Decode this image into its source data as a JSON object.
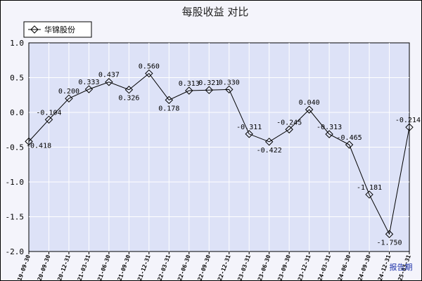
{
  "chart_data": {
    "type": "line",
    "title": "每股收益  对比",
    "x_axis_label": "报告期",
    "x": [
      "2019-09-30",
      "2020-09-30",
      "2020-12-31",
      "2021-03-31",
      "2021-06-30",
      "2021-09-30",
      "2021-12-31",
      "2022-03-31",
      "2022-06-30",
      "2022-09-30",
      "2022-12-31",
      "2023-03-31",
      "2023-06-30",
      "2023-09-30",
      "2023-12-31",
      "2024-03-31",
      "2024-06-30",
      "2024-09-30",
      "2024-12-31",
      "2025-03-31"
    ],
    "series": [
      {
        "name": "华锦股份",
        "values": [
          -0.418,
          -0.104,
          0.2,
          0.333,
          0.437,
          0.326,
          0.56,
          0.178,
          0.313,
          0.321,
          0.33,
          -0.311,
          -0.422,
          -0.245,
          0.04,
          -0.313,
          -0.465,
          -1.181,
          -1.75,
          -0.214
        ],
        "labels": [
          "-0.418",
          "-0.104",
          "0.200",
          "0.333",
          "0.437",
          "0.326",
          "0.560",
          "0.178",
          "0.313",
          "0.321",
          "0.330",
          "-0.311",
          "-0.422",
          "-0.245",
          "0.040",
          "-0.313",
          "-0.465",
          "-1.181",
          "-1.750",
          "-0.214"
        ]
      }
    ],
    "ylim": [
      -2.0,
      1.0
    ],
    "yticks": [
      "1.0",
      "0.5",
      "0.0",
      "-0.5",
      "-1.0",
      "-1.5",
      "-2.0"
    ],
    "ytick_values": [
      1.0,
      0.5,
      0.0,
      -0.5,
      -1.0,
      -1.5,
      -2.0
    ],
    "grid": true,
    "legend_position": "top-left",
    "colors": {
      "plot_bg": "#dde2f7",
      "line": "#000000",
      "grid": "#ffffff",
      "period_label": "#1a2fa8"
    }
  }
}
